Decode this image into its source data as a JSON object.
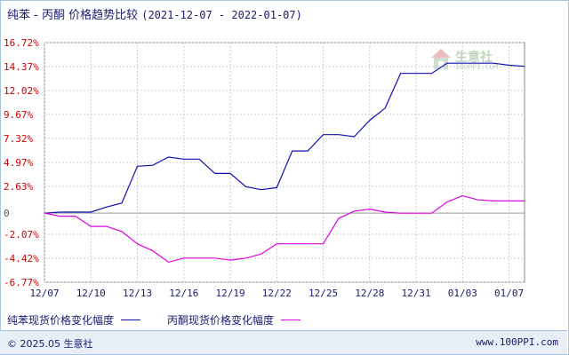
{
  "title": {
    "main": "纯苯 - 丙酮 价格趋势比较",
    "range": "(2021-12-07 - 2022-01-07)"
  },
  "legend": {
    "series1": "纯苯现货价格变化幅度",
    "series2": "丙酮现货价格变化幅度"
  },
  "footer": {
    "copyright": "© 2025.05 生意社",
    "site": "www.100PPI.com"
  },
  "watermark": {
    "name": "生意社",
    "site": "100PPI.COM"
  },
  "colors": {
    "series1": "#1010b0",
    "series2": "#e000e0",
    "grid": "#cccccc",
    "axis": "#888888",
    "ytick": "#cc0000"
  },
  "chart_data": {
    "type": "line",
    "ylim": [
      -6.77,
      16.72
    ],
    "y_ticks": [
      "16.72%",
      "14.37%",
      "12.02%",
      "9.67%",
      "7.32%",
      "4.97%",
      "2.63%",
      "0",
      "-2.07%",
      "-4.42%",
      "-6.77%"
    ],
    "y_tick_values": [
      16.72,
      14.37,
      12.02,
      9.67,
      7.32,
      4.97,
      2.63,
      0,
      -2.07,
      -4.42,
      -6.77
    ],
    "x_ticks": [
      "12/07",
      "12/10",
      "12/13",
      "12/16",
      "12/19",
      "12/22",
      "12/25",
      "12/28",
      "12/31",
      "01/03",
      "01/07"
    ],
    "x_tick_days": [
      0,
      3,
      6,
      9,
      12,
      15,
      18,
      21,
      24,
      27,
      30
    ],
    "x_range_days": [
      0,
      31
    ],
    "series": [
      {
        "name": "纯苯现货价格变化幅度",
        "color": "#1010b0",
        "days": [
          0,
          1,
          2,
          3,
          4,
          5,
          6,
          7,
          8,
          9,
          10,
          11,
          12,
          13,
          14,
          15,
          16,
          17,
          18,
          19,
          20,
          21,
          22,
          23,
          24,
          25,
          26,
          27,
          28,
          29,
          30,
          31
        ],
        "values": [
          0,
          0.1,
          0.1,
          0.1,
          0.6,
          1.0,
          4.6,
          4.7,
          5.5,
          5.3,
          5.3,
          3.9,
          3.9,
          2.6,
          2.3,
          2.5,
          6.1,
          6.1,
          7.7,
          7.7,
          7.5,
          9.1,
          10.3,
          13.7,
          13.7,
          13.7,
          14.7,
          14.7,
          14.7,
          14.7,
          14.5,
          14.4
        ]
      },
      {
        "name": "丙酮现货价格变化幅度",
        "color": "#e000e0",
        "days": [
          0,
          1,
          2,
          3,
          4,
          5,
          6,
          7,
          8,
          9,
          10,
          11,
          12,
          13,
          14,
          15,
          16,
          17,
          18,
          19,
          20,
          21,
          22,
          23,
          24,
          25,
          26,
          27,
          28,
          29,
          30,
          31
        ],
        "values": [
          0,
          -0.3,
          -0.3,
          -1.3,
          -1.3,
          -1.8,
          -3.0,
          -3.7,
          -4.8,
          -4.4,
          -4.4,
          -4.4,
          -4.6,
          -4.4,
          -4.0,
          -3.0,
          -3.0,
          -3.0,
          -3.0,
          -0.5,
          0.2,
          0.4,
          0.1,
          0.0,
          0.0,
          0.0,
          1.1,
          1.7,
          1.3,
          1.2,
          1.2,
          1.2
        ]
      }
    ]
  }
}
